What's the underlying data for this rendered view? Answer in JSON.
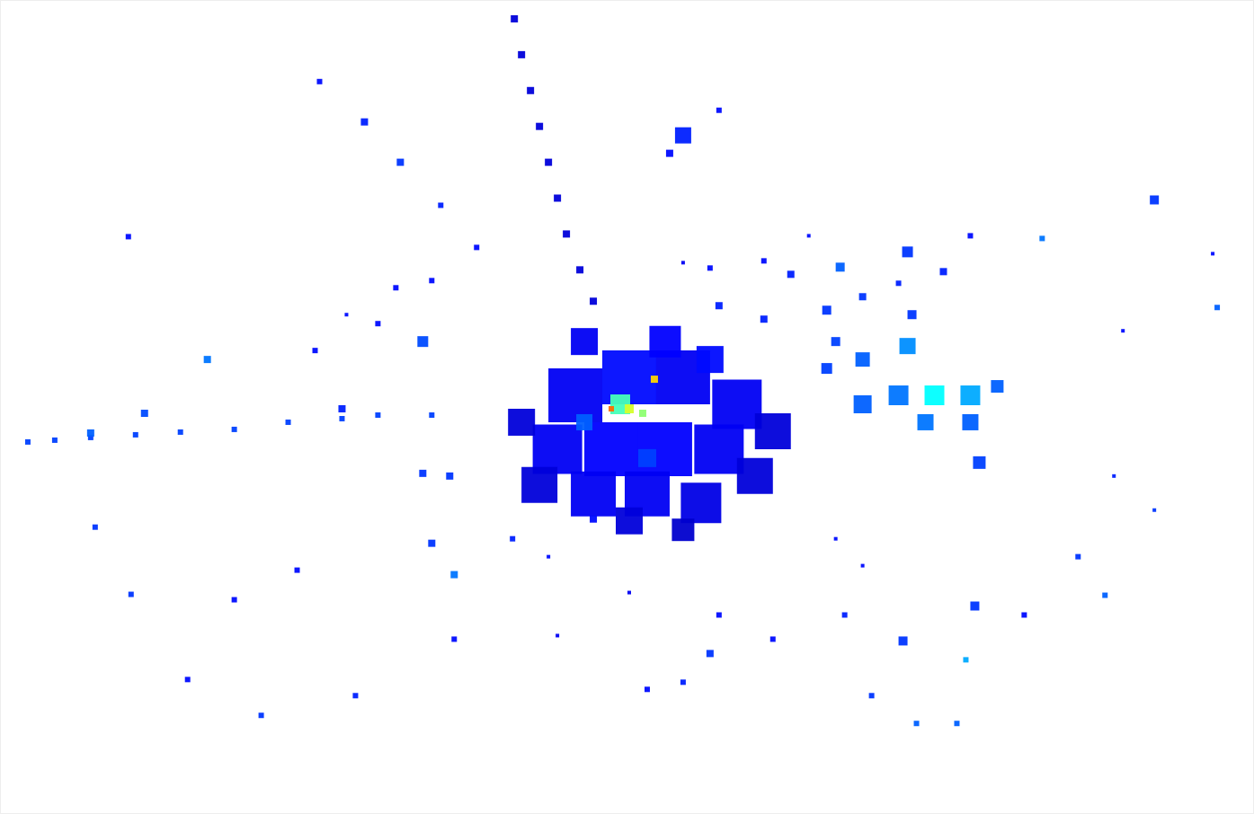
{
  "chart_data": {
    "type": "scatter",
    "marker": "square",
    "grid": false,
    "tick_labels": false,
    "xlim": [
      0,
      1395
    ],
    "ylim": [
      906,
      0
    ],
    "value_range": [
      0,
      60
    ],
    "x": [
      640,
      700,
      760,
      820,
      620,
      680,
      740,
      800,
      860,
      600,
      660,
      720,
      780,
      840,
      700,
      760,
      650,
      740,
      790,
      580,
      720,
      650,
      690,
      700,
      715,
      728,
      680,
      572,
      580,
      590,
      600,
      610,
      620,
      630,
      645,
      660,
      30,
      60,
      100,
      150,
      200,
      260,
      320,
      380,
      420,
      480,
      960,
      1000,
      1040,
      1080,
      1110,
      1030,
      1080,
      1090,
      1010,
      960,
      920,
      1015,
      935,
      930,
      1010,
      1050,
      1080,
      1285,
      760,
      745,
      800,
      355,
      405,
      445,
      490,
      142,
      230,
      350,
      380,
      470,
      160,
      100,
      470,
      500,
      505,
      480,
      330,
      260,
      208,
      105,
      145,
      290,
      395,
      505,
      620,
      660,
      720,
      790,
      800,
      860,
      1005,
      1085,
      1140,
      1075,
      970,
      1020,
      1065,
      1230,
      1200,
      1240,
      1285,
      1355,
      1350,
      1250,
      1160,
      900,
      850,
      880,
      790,
      760,
      800,
      850,
      920,
      960,
      1000,
      440,
      530,
      480,
      420,
      385,
      570,
      610,
      700,
      760,
      930,
      940,
      960
    ],
    "y": [
      440,
      420,
      420,
      450,
      500,
      500,
      500,
      500,
      480,
      540,
      550,
      550,
      560,
      530,
      580,
      590,
      380,
      380,
      400,
      470,
      510,
      470,
      450,
      455,
      460,
      422,
      455,
      20,
      60,
      100,
      140,
      180,
      220,
      260,
      300,
      335,
      492,
      490,
      487,
      484,
      481,
      478,
      470,
      466,
      462,
      462,
      450,
      440,
      440,
      440,
      430,
      470,
      470,
      515,
      385,
      400,
      410,
      350,
      297,
      380,
      280,
      302,
      262,
      222,
      150,
      170,
      122,
      90,
      135,
      180,
      228,
      263,
      400,
      390,
      455,
      380,
      460,
      482,
      527,
      530,
      640,
      605,
      635,
      668,
      757,
      587,
      662,
      797,
      775,
      712,
      708,
      578,
      768,
      728,
      685,
      712,
      714,
      675,
      685,
      735,
      775,
      806,
      806,
      663,
      620,
      530,
      568,
      342,
      282,
      368,
      265,
      262,
      290,
      305,
      298,
      292,
      340,
      355,
      345,
      330,
      315,
      320,
      275,
      312,
      360,
      350,
      600,
      620,
      660,
      760,
      600,
      685,
      630
    ],
    "values": [
      8,
      10,
      8,
      8,
      8,
      9,
      9,
      8,
      6,
      6,
      8,
      8,
      7,
      6,
      6,
      5,
      8,
      9,
      10,
      6,
      15,
      18,
      35,
      45,
      40,
      50,
      55,
      6,
      6,
      6,
      6,
      6,
      6,
      6,
      6,
      6,
      15,
      15,
      15,
      15,
      15,
      15,
      15,
      15,
      15,
      15,
      18,
      20,
      30,
      24,
      18,
      20,
      18,
      15,
      22,
      18,
      15,
      14,
      18,
      15,
      14,
      12,
      10,
      14,
      12,
      10,
      10,
      10,
      12,
      14,
      12,
      10,
      20,
      10,
      12,
      16,
      16,
      18,
      14,
      14,
      20,
      14,
      10,
      10,
      10,
      14,
      14,
      14,
      12,
      10,
      8,
      10,
      10,
      14,
      10,
      10,
      14,
      14,
      10,
      24,
      14,
      18,
      18,
      18,
      14,
      12,
      14,
      18,
      10,
      10,
      20,
      10,
      10,
      12,
      10,
      8,
      12,
      12,
      14,
      14,
      12,
      10,
      10,
      10,
      10,
      10,
      12,
      10,
      8,
      12,
      10,
      12,
      10
    ],
    "sizes": [
      60,
      60,
      60,
      55,
      55,
      60,
      60,
      55,
      40,
      40,
      50,
      50,
      45,
      40,
      30,
      25,
      30,
      35,
      30,
      30,
      20,
      18,
      22,
      10,
      8,
      8,
      6,
      8,
      8,
      8,
      8,
      8,
      8,
      8,
      8,
      8,
      6,
      6,
      6,
      6,
      6,
      6,
      6,
      6,
      6,
      6,
      20,
      22,
      22,
      22,
      14,
      18,
      18,
      14,
      18,
      16,
      12,
      10,
      10,
      10,
      12,
      8,
      6,
      10,
      18,
      8,
      6,
      6,
      8,
      8,
      6,
      6,
      8,
      6,
      8,
      12,
      8,
      8,
      8,
      8,
      8,
      8,
      6,
      6,
      6,
      6,
      6,
      6,
      6,
      6,
      4,
      8,
      6,
      8,
      6,
      6,
      10,
      10,
      6,
      6,
      6,
      6,
      6,
      6,
      6,
      4,
      4,
      6,
      4,
      4,
      6,
      4,
      6,
      8,
      6,
      4,
      8,
      8,
      10,
      8,
      6,
      6,
      6,
      6,
      6,
      4,
      6,
      4,
      4,
      6,
      4,
      6,
      4
    ]
  }
}
